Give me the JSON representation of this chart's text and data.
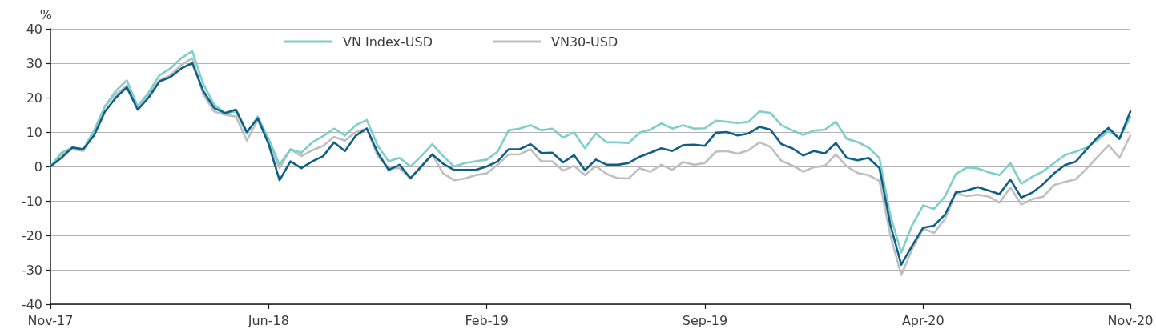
{
  "chart_data": {
    "type": "line",
    "ylabel": "%",
    "categories": [
      "Nov-17",
      null,
      null,
      null,
      null,
      null,
      null,
      null,
      null,
      null,
      null,
      null,
      null,
      null,
      null,
      null,
      null,
      null,
      null,
      null,
      "Jun-18",
      null,
      null,
      null,
      null,
      null,
      null,
      null,
      null,
      null,
      null,
      null,
      null,
      null,
      null,
      null,
      null,
      null,
      null,
      null,
      "Feb-19",
      null,
      null,
      null,
      null,
      null,
      null,
      null,
      null,
      null,
      null,
      null,
      null,
      null,
      null,
      null,
      null,
      null,
      null,
      null,
      "Sep-19",
      null,
      null,
      null,
      null,
      null,
      null,
      null,
      null,
      null,
      null,
      null,
      null,
      null,
      null,
      null,
      null,
      null,
      null,
      null,
      "Apr-20",
      null,
      null,
      null,
      null,
      null,
      null,
      null,
      null,
      null,
      null,
      null,
      null,
      null,
      null,
      null,
      null,
      null,
      null,
      "Nov-20"
    ],
    "series": [
      {
        "color": "#105f84",
        "values": [
          0,
          2.5,
          5.5,
          5,
          9,
          16,
          20,
          23,
          16.5,
          20,
          24.7,
          26,
          28.5,
          30,
          22,
          17,
          15.5,
          16.5,
          10,
          14,
          6.5,
          -4,
          1.5,
          -0.5,
          1.5,
          3,
          7,
          4.5,
          9,
          11,
          4,
          -1,
          0.5,
          -3.4,
          0,
          3.5,
          0.8,
          -1,
          -1,
          -1,
          0,
          1.5,
          5,
          5,
          6.5,
          3.9,
          4,
          1.2,
          3.3,
          -1.1,
          2,
          0.5,
          0.5,
          1,
          2.8,
          4,
          5.3,
          4.5,
          6.2,
          6.3,
          6,
          9.8,
          10,
          9,
          9.6,
          11.5,
          10.7,
          6.5,
          5.3,
          3.2,
          4.5,
          3.8,
          6.8,
          2.5,
          1.8,
          2.5,
          -0.5,
          -17,
          -28.5,
          -23,
          -17.8,
          -17.2,
          -14,
          -7.5,
          -7,
          -6,
          -7,
          -8,
          -3.8,
          -9,
          -7.6,
          -5.1,
          -2,
          0.4,
          1.4,
          5,
          8.5,
          11.2,
          8,
          16
        ]
      },
      {
        "name": "VN Index-USD",
        "color": "#7ecfc9",
        "values": [
          0,
          4,
          5.5,
          5,
          10.5,
          17.5,
          22,
          25,
          17.5,
          21.5,
          26.5,
          28.5,
          31.5,
          33.5,
          24,
          18,
          15.5,
          16,
          9.5,
          14.5,
          8,
          0.5,
          5,
          4,
          7,
          8.8,
          11,
          9,
          12,
          13.5,
          6,
          1.5,
          2.5,
          0,
          3,
          6.5,
          3,
          0,
          1,
          1.5,
          2,
          4.3,
          10.5,
          11,
          12,
          10.5,
          11,
          8.4,
          9.9,
          5.3,
          9.6,
          7,
          7,
          6.8,
          9.8,
          10.7,
          12.5,
          11,
          12,
          11,
          11.1,
          13.3,
          13,
          12.6,
          13,
          16,
          15.6,
          12,
          10.5,
          9.2,
          10.4,
          10.7,
          13,
          8,
          7.1,
          5.5,
          2.4,
          -14.3,
          -25,
          -17,
          -11.3,
          -12.3,
          -8.7,
          -2.2,
          -0.3,
          -0.6,
          -1.7,
          -2.5,
          1,
          -5,
          -3,
          -1.4,
          1,
          3.3,
          4.3,
          5.5,
          7.7,
          10.3,
          8.2,
          14.3
        ]
      },
      {
        "name": "VN30-USD",
        "color": "#bfbfc1",
        "values": [
          0,
          3.5,
          5,
          4.5,
          10,
          17.5,
          21,
          23.5,
          16.5,
          21,
          25,
          26.5,
          29.5,
          31.5,
          21,
          16,
          15,
          14.5,
          7.5,
          13.5,
          7,
          -0.5,
          5,
          3,
          4.7,
          6,
          8.6,
          7.5,
          10,
          11,
          3,
          -0.5,
          -0.5,
          -3.5,
          0,
          3.5,
          -2,
          -4,
          -3.5,
          -2.5,
          -2,
          0.5,
          3.5,
          3.5,
          5,
          1.5,
          1.5,
          -1.2,
          0.2,
          -2.5,
          0.1,
          -2.2,
          -3.4,
          -3.5,
          -0.5,
          -1.5,
          0.5,
          -1,
          1.3,
          0.5,
          1,
          4.3,
          4.5,
          3.7,
          4.7,
          7,
          5.7,
          1.7,
          0.3,
          -1.5,
          -0.2,
          0.2,
          3.5,
          0,
          -1.9,
          -2.5,
          -4.2,
          -20,
          -31.5,
          -24,
          -18,
          -19.3,
          -15.3,
          -7.7,
          -8.6,
          -8.2,
          -8.7,
          -10.5,
          -6.1,
          -11,
          -9.5,
          -8.8,
          -5.4,
          -4.5,
          -3.7,
          -0.6,
          2.8,
          6.2,
          2.5,
          9
        ]
      }
    ],
    "ylim": [
      -40,
      40
    ],
    "yticks": [
      -40,
      -30,
      -20,
      -10,
      0,
      10,
      20,
      30,
      40
    ],
    "grid": "y",
    "legend": "top left",
    "marker": "none"
  }
}
